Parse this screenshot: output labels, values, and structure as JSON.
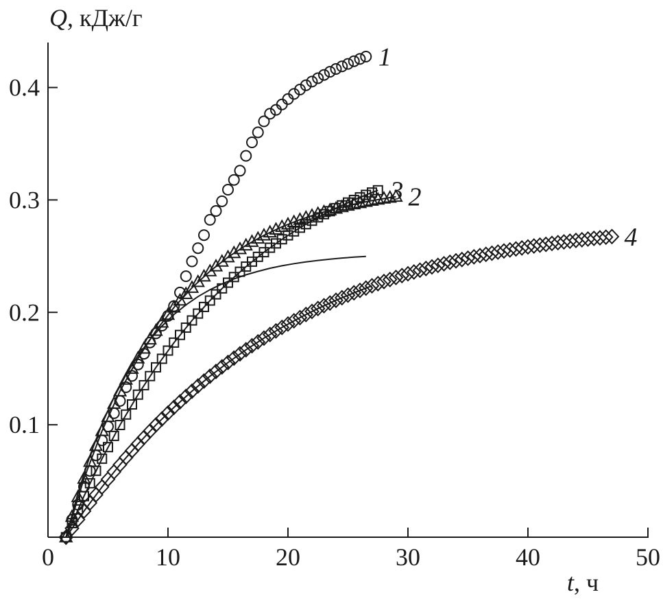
{
  "chart_data": {
    "type": "scatter",
    "ylabel_symbol": "Q",
    "ylabel_unit": ", кДж/г",
    "xlabel_symbol": "t",
    "xlabel_unit": ", ч",
    "xlim": [
      0,
      50
    ],
    "ylim": [
      0,
      0.44
    ],
    "xticks": [
      0,
      10,
      20,
      30,
      40,
      50
    ],
    "xtick_labels": [
      "0",
      "10",
      "20",
      "30",
      "40",
      "50"
    ],
    "yticks": [
      0.1,
      0.2,
      0.3,
      0.4
    ],
    "ytick_labels": [
      "0.1",
      "0.2",
      "0.3",
      "0.4"
    ],
    "grid": false,
    "series": [
      {
        "name": "1",
        "marker": "circle",
        "x": [
          1.5,
          2.0,
          2.5,
          3.0,
          3.5,
          4.0,
          4.5,
          5.0,
          5.5,
          6.0,
          6.5,
          7.0,
          7.5,
          8.0,
          8.5,
          9.0,
          9.5,
          10.0,
          10.5,
          11.0,
          11.5,
          12.0,
          12.5,
          13.0,
          13.5,
          14.0,
          14.5,
          15.0,
          15.5,
          16.0,
          16.5,
          17.0,
          17.5,
          18.0,
          18.5,
          19.0,
          19.5,
          20.0,
          20.5,
          21.0,
          21.5,
          22.0,
          22.5,
          23.0,
          23.5,
          24.0,
          24.5,
          25.0,
          25.5,
          26.0,
          26.5
        ],
        "y": [
          0.0,
          0.0155,
          0.0289,
          0.0449,
          0.059,
          0.0728,
          0.0861,
          0.0985,
          0.1103,
          0.1212,
          0.1334,
          0.1435,
          0.1536,
          0.1632,
          0.1732,
          0.1813,
          0.1882,
          0.1969,
          0.2056,
          0.2176,
          0.2321,
          0.2453,
          0.2571,
          0.2687,
          0.2823,
          0.2902,
          0.2988,
          0.3091,
          0.3178,
          0.326,
          0.3392,
          0.3512,
          0.3601,
          0.3699,
          0.3767,
          0.3801,
          0.3849,
          0.3897,
          0.3943,
          0.3982,
          0.402,
          0.4053,
          0.4083,
          0.4112,
          0.414,
          0.4165,
          0.4188,
          0.421,
          0.4234,
          0.4254,
          0.4275
        ],
        "fit_x": [
          1.5,
          2.5,
          3.5,
          4.5,
          5.5,
          6.5,
          7.5,
          8.5,
          9.5,
          10.5,
          11.5,
          12.5,
          13.5,
          14.5,
          15.5,
          16.5,
          17.5,
          18.5,
          19.5,
          20.5,
          21.5,
          22.5,
          23.5,
          24.5,
          25.5,
          26.5
        ],
        "fit_y": [
          0.0,
          0.0394,
          0.0727,
          0.1008,
          0.1245,
          0.1446,
          0.1615,
          0.1758,
          0.1879,
          0.1981,
          0.2067,
          0.214,
          0.2201,
          0.2253,
          0.2297,
          0.2334,
          0.2365,
          0.2392,
          0.2414,
          0.2433,
          0.2449,
          0.2462,
          0.2473,
          0.2483,
          0.2491,
          0.2498
        ]
      },
      {
        "name": "2",
        "marker": "triangle",
        "x": [
          1.5,
          2.0,
          2.5,
          3.0,
          3.5,
          4.0,
          4.5,
          5.0,
          5.5,
          6.0,
          6.5,
          7.0,
          7.5,
          8.0,
          8.5,
          9.0,
          9.5,
          10.0,
          10.5,
          11.0,
          11.5,
          12.0,
          12.5,
          13.0,
          13.5,
          14.0,
          14.5,
          15.0,
          15.5,
          16.0,
          16.5,
          17.0,
          17.5,
          18.0,
          18.5,
          19.0,
          19.5,
          20.0,
          20.5,
          21.0,
          21.5,
          22.0,
          22.5,
          23.0,
          23.5,
          24.0,
          24.5,
          25.0,
          25.5,
          26.0,
          26.5,
          27.0,
          27.5,
          28.0,
          28.5,
          29.0
        ],
        "y": [
          0.0,
          0.0182,
          0.0358,
          0.0521,
          0.0671,
          0.0813,
          0.0945,
          0.107,
          0.1188,
          0.1298,
          0.1402,
          0.1499,
          0.1591,
          0.1678,
          0.176,
          0.1837,
          0.191,
          0.1979,
          0.2044,
          0.2106,
          0.2164,
          0.2219,
          0.2271,
          0.232,
          0.2366,
          0.241,
          0.2452,
          0.2491,
          0.2528,
          0.2563,
          0.2596,
          0.2628,
          0.2657,
          0.2685,
          0.2712,
          0.2737,
          0.2761,
          0.2783,
          0.2804,
          0.2824,
          0.2843,
          0.2861,
          0.2878,
          0.2894,
          0.2909,
          0.2923,
          0.2937,
          0.295,
          0.2962,
          0.2973,
          0.2984,
          0.2994,
          0.3004,
          0.3013,
          0.3021,
          0.3029
        ],
        "fit_x": [
          1.5,
          3.0,
          4.5,
          6.0,
          7.5,
          9.0,
          10.5,
          12.0,
          13.5,
          15.0,
          16.5,
          18.0,
          19.5,
          21.0,
          22.5,
          24.0,
          25.5,
          27.0,
          28.5,
          29.0
        ],
        "fit_y": [
          0.0,
          0.0521,
          0.0945,
          0.1298,
          0.1591,
          0.1837,
          0.2044,
          0.2219,
          0.2366,
          0.2491,
          0.2596,
          0.2685,
          0.2761,
          0.2824,
          0.2878,
          0.2923,
          0.2962,
          0.2994,
          0.3021,
          0.3029
        ]
      },
      {
        "name": "3",
        "marker": "square",
        "x": [
          1.5,
          2.0,
          2.5,
          3.0,
          3.5,
          4.0,
          4.5,
          5.0,
          5.5,
          6.0,
          6.5,
          7.0,
          7.5,
          8.0,
          8.5,
          9.0,
          9.5,
          10.0,
          10.5,
          11.0,
          11.5,
          12.0,
          12.5,
          13.0,
          13.5,
          14.0,
          14.5,
          15.0,
          15.5,
          16.0,
          16.5,
          17.0,
          17.5,
          18.0,
          18.5,
          19.0,
          19.5,
          20.0,
          20.5,
          21.0,
          21.5,
          22.0,
          22.5,
          23.0,
          23.5,
          24.0,
          24.5,
          25.0,
          25.5,
          26.0,
          26.5,
          27.0,
          27.5
        ],
        "y": [
          0.0,
          0.0125,
          0.0247,
          0.0365,
          0.048,
          0.0591,
          0.0698,
          0.0801,
          0.0901,
          0.0998,
          0.1091,
          0.1181,
          0.1268,
          0.1352,
          0.1433,
          0.1511,
          0.1587,
          0.166,
          0.1731,
          0.1799,
          0.1864,
          0.1928,
          0.1989,
          0.2048,
          0.2105,
          0.216,
          0.2213,
          0.2264,
          0.2314,
          0.2361,
          0.2407,
          0.2451,
          0.2494,
          0.2535,
          0.2575,
          0.2613,
          0.265,
          0.2685,
          0.272,
          0.2753,
          0.2784,
          0.2815,
          0.2845,
          0.2873,
          0.29,
          0.2927,
          0.2952,
          0.2977,
          0.3,
          0.3023,
          0.3045,
          0.3066,
          0.3086
        ],
        "fit_x": [
          1.5,
          3.0,
          4.5,
          6.0,
          7.5,
          9.0,
          10.5,
          12.0,
          13.5,
          15.0,
          16.5,
          18.0,
          19.5,
          21.0,
          22.5,
          24.0,
          25.5,
          27.0,
          27.5
        ],
        "fit_y": [
          0.0,
          0.0365,
          0.0698,
          0.0998,
          0.1268,
          0.1511,
          0.1731,
          0.1928,
          0.2105,
          0.2264,
          0.2407,
          0.2535,
          0.265,
          0.2753,
          0.2845,
          0.2927,
          0.3,
          0.3066,
          0.3086
        ]
      },
      {
        "name": "4",
        "marker": "diamond",
        "x": [
          1.5,
          2.0,
          2.5,
          3.0,
          3.5,
          4.0,
          4.5,
          5.0,
          5.5,
          6.0,
          6.5,
          7.0,
          7.5,
          8.0,
          8.5,
          9.0,
          9.5,
          10.0,
          10.5,
          11.0,
          11.5,
          12.0,
          12.5,
          13.0,
          13.5,
          14.0,
          14.5,
          15.0,
          15.5,
          16.0,
          16.5,
          17.0,
          17.5,
          18.0,
          18.5,
          19.0,
          19.5,
          20.0,
          20.5,
          21.0,
          21.5,
          22.0,
          22.5,
          23.0,
          23.5,
          24.0,
          24.5,
          25.0,
          25.5,
          26.0,
          26.5,
          27.0,
          27.5,
          28.0,
          28.5,
          29.0,
          29.5,
          30.0,
          30.5,
          31.0,
          31.5,
          32.0,
          32.5,
          33.0,
          33.5,
          34.0,
          34.5,
          35.0,
          35.5,
          36.0,
          36.5,
          37.0,
          37.5,
          38.0,
          38.5,
          39.0,
          39.5,
          40.0,
          40.5,
          41.0,
          41.5,
          42.0,
          42.5,
          43.0,
          43.5,
          44.0,
          44.5,
          45.0,
          45.5,
          46.0,
          46.5,
          47.0
        ],
        "y": [
          0.0,
          0.0079,
          0.0157,
          0.0232,
          0.0305,
          0.0377,
          0.0447,
          0.0515,
          0.0581,
          0.0645,
          0.0708,
          0.0769,
          0.0829,
          0.0887,
          0.0944,
          0.0999,
          0.1052,
          0.1104,
          0.1155,
          0.1204,
          0.1252,
          0.1299,
          0.1345,
          0.1389,
          0.1432,
          0.1474,
          0.1515,
          0.1554,
          0.1593,
          0.1631,
          0.1667,
          0.1703,
          0.1737,
          0.1771,
          0.1803,
          0.1835,
          0.1866,
          0.1896,
          0.1925,
          0.1953,
          0.1981,
          0.2008,
          0.2034,
          0.2059,
          0.2083,
          0.2107,
          0.213,
          0.2153,
          0.2174,
          0.2195,
          0.2216,
          0.2236,
          0.2255,
          0.2274,
          0.2292,
          0.231,
          0.2327,
          0.2343,
          0.2359,
          0.2375,
          0.239,
          0.2404,
          0.2418,
          0.2432,
          0.2445,
          0.2458,
          0.247,
          0.2482,
          0.2494,
          0.2505,
          0.2516,
          0.2526,
          0.2536,
          0.2546,
          0.2555,
          0.2564,
          0.2573,
          0.2582,
          0.259,
          0.2598,
          0.2605,
          0.2613,
          0.262,
          0.2627,
          0.2633,
          0.264,
          0.2646,
          0.2652,
          0.2658,
          0.2663,
          0.2669,
          0.2674
        ],
        "fit_x": [
          1.5,
          3.0,
          4.5,
          6.0,
          7.5,
          9.0,
          10.5,
          12.0,
          13.5,
          15.0,
          16.5,
          18.0,
          19.5,
          21.0,
          22.5,
          24.0,
          25.5,
          27.0
        ],
        "fit_y": [
          0.0,
          0.0232,
          0.0447,
          0.0645,
          0.0829,
          0.0999,
          0.1155,
          0.1299,
          0.1432,
          0.1554,
          0.1667,
          0.1771,
          0.1866,
          0.1953,
          0.2034,
          0.2107,
          0.2174,
          0.2236
        ]
      }
    ]
  }
}
